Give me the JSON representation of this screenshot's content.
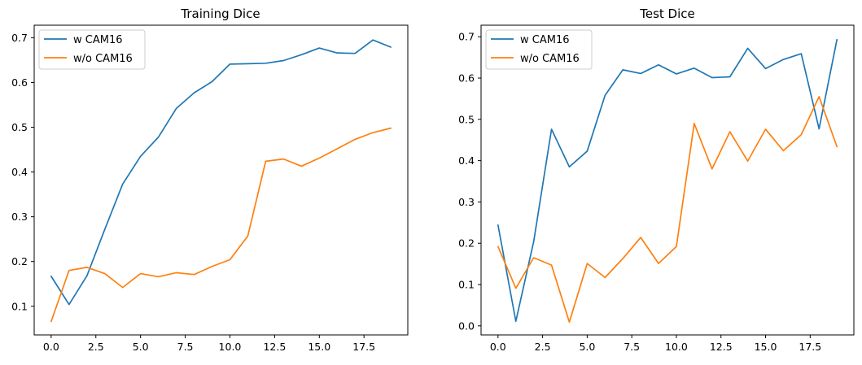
{
  "chart_data": [
    {
      "type": "line",
      "title": "Training Dice",
      "xlabel": "",
      "ylabel": "",
      "xlim": [
        -0.95,
        19.95
      ],
      "ylim": [
        0.036,
        0.728
      ],
      "xticks": [
        0.0,
        2.5,
        5.0,
        7.5,
        10.0,
        12.5,
        15.0,
        17.5
      ],
      "xtick_labels": [
        "0.0",
        "2.5",
        "5.0",
        "7.5",
        "10.0",
        "12.5",
        "15.0",
        "17.5"
      ],
      "yticks": [
        0.1,
        0.2,
        0.3,
        0.4,
        0.5,
        0.6,
        0.7
      ],
      "ytick_labels": [
        "0.1",
        "0.2",
        "0.3",
        "0.4",
        "0.5",
        "0.6",
        "0.7"
      ],
      "legend": "top-left",
      "grid": false,
      "x": [
        0,
        1,
        2,
        3,
        4,
        5,
        6,
        7,
        8,
        9,
        10,
        11,
        12,
        13,
        14,
        15,
        16,
        17,
        18,
        19
      ],
      "series": [
        {
          "name": "w CAM16",
          "color": "#1f77b4",
          "values": [
            0.167,
            0.104,
            0.168,
            0.272,
            0.373,
            0.435,
            0.478,
            0.542,
            0.577,
            0.602,
            0.641,
            0.642,
            0.643,
            0.649,
            0.662,
            0.677,
            0.666,
            0.665,
            0.695,
            0.679
          ]
        },
        {
          "name": "w/o CAM16",
          "color": "#ff7f0e",
          "values": [
            0.066,
            0.18,
            0.187,
            0.173,
            0.142,
            0.173,
            0.166,
            0.175,
            0.171,
            0.189,
            0.204,
            0.257,
            0.424,
            0.429,
            0.413,
            0.431,
            0.452,
            0.473,
            0.488,
            0.498
          ]
        }
      ]
    },
    {
      "type": "line",
      "title": "Test Dice",
      "xlabel": "",
      "ylabel": "",
      "xlim": [
        -0.95,
        19.95
      ],
      "ylim": [
        -0.022,
        0.728
      ],
      "xticks": [
        0.0,
        2.5,
        5.0,
        7.5,
        10.0,
        12.5,
        15.0,
        17.5
      ],
      "xtick_labels": [
        "0.0",
        "2.5",
        "5.0",
        "7.5",
        "10.0",
        "12.5",
        "15.0",
        "17.5"
      ],
      "yticks": [
        0.0,
        0.1,
        0.2,
        0.3,
        0.4,
        0.5,
        0.6,
        0.7
      ],
      "ytick_labels": [
        "0.0",
        "0.1",
        "0.2",
        "0.3",
        "0.4",
        "0.5",
        "0.6",
        "0.7"
      ],
      "legend": "top-left",
      "grid": false,
      "x": [
        0,
        1,
        2,
        3,
        4,
        5,
        6,
        7,
        8,
        9,
        10,
        11,
        12,
        13,
        14,
        15,
        16,
        17,
        18,
        19
      ],
      "series": [
        {
          "name": "w CAM16",
          "color": "#1f77b4",
          "values": [
            0.244,
            0.011,
            0.204,
            0.476,
            0.385,
            0.423,
            0.558,
            0.62,
            0.611,
            0.632,
            0.61,
            0.624,
            0.601,
            0.603,
            0.672,
            0.623,
            0.645,
            0.659,
            0.477,
            0.693
          ]
        },
        {
          "name": "w/o CAM16",
          "color": "#ff7f0e",
          "values": [
            0.192,
            0.091,
            0.165,
            0.147,
            0.009,
            0.151,
            0.117,
            0.163,
            0.214,
            0.151,
            0.192,
            0.49,
            0.38,
            0.47,
            0.399,
            0.476,
            0.424,
            0.463,
            0.555,
            0.434
          ]
        }
      ]
    }
  ]
}
